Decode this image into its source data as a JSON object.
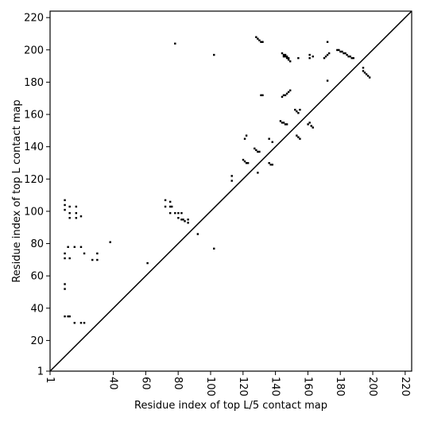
{
  "chart_data": {
    "type": "heatmap",
    "title": "",
    "xlabel": "Residue index of top L/5 contact map",
    "ylabel": "Residue index of top L contact map",
    "xlim": [
      1,
      224
    ],
    "ylim": [
      1,
      224
    ],
    "xticks": [
      1,
      40,
      60,
      80,
      100,
      120,
      140,
      160,
      180,
      200,
      220
    ],
    "yticks": [
      1,
      20,
      40,
      60,
      80,
      100,
      120,
      140,
      160,
      180,
      200,
      220
    ],
    "grid": false,
    "diagonal": true,
    "upper_contacts": [
      [
        128,
        208
      ],
      [
        129,
        207
      ],
      [
        130,
        206
      ],
      [
        131,
        205
      ],
      [
        132,
        205
      ],
      [
        144,
        198
      ],
      [
        145,
        197
      ],
      [
        146,
        196
      ],
      [
        147,
        195
      ],
      [
        148,
        194
      ],
      [
        149,
        193
      ],
      [
        145,
        196
      ],
      [
        146,
        197
      ],
      [
        147,
        196
      ],
      [
        148,
        195
      ],
      [
        154,
        195
      ],
      [
        161,
        197
      ],
      [
        161,
        195
      ],
      [
        163,
        196
      ],
      [
        170,
        195
      ],
      [
        171,
        196
      ],
      [
        172,
        197
      ],
      [
        173,
        198
      ],
      [
        172,
        205
      ],
      [
        172,
        181
      ],
      [
        178,
        200
      ],
      [
        179,
        200
      ],
      [
        180,
        199
      ],
      [
        181,
        199
      ],
      [
        182,
        198
      ],
      [
        183,
        198
      ],
      [
        184,
        197
      ],
      [
        185,
        196
      ],
      [
        186,
        196
      ],
      [
        187,
        195
      ],
      [
        188,
        195
      ],
      [
        194,
        189
      ],
      [
        194,
        187
      ],
      [
        195,
        186
      ],
      [
        196,
        185
      ],
      [
        197,
        184
      ],
      [
        198,
        183
      ],
      [
        102,
        197
      ],
      [
        78,
        204
      ],
      [
        131,
        172
      ],
      [
        132,
        172
      ],
      [
        144,
        171
      ],
      [
        145,
        172
      ],
      [
        146,
        172
      ],
      [
        147,
        173
      ],
      [
        148,
        174
      ],
      [
        149,
        175
      ],
      [
        152,
        163
      ],
      [
        153,
        162
      ],
      [
        154,
        161
      ],
      [
        155,
        163
      ],
      [
        143,
        156
      ],
      [
        144,
        155
      ],
      [
        145,
        155
      ],
      [
        146,
        154
      ],
      [
        147,
        154
      ],
      [
        160,
        154
      ],
      [
        161,
        155
      ],
      [
        162,
        153
      ],
      [
        163,
        152
      ],
      [
        153,
        147
      ],
      [
        154,
        146
      ],
      [
        155,
        145
      ],
      [
        121,
        145
      ],
      [
        122,
        147
      ],
      [
        136,
        145
      ],
      [
        138,
        143
      ],
      [
        127,
        139
      ],
      [
        128,
        138
      ],
      [
        129,
        137
      ],
      [
        130,
        137
      ],
      [
        120,
        132
      ],
      [
        121,
        131
      ],
      [
        122,
        130
      ],
      [
        123,
        130
      ],
      [
        136,
        130
      ],
      [
        137,
        129
      ],
      [
        138,
        129
      ],
      [
        129,
        124
      ],
      [
        113,
        122
      ],
      [
        113,
        119
      ]
    ],
    "lower_contacts": [
      [
        10,
        107
      ],
      [
        10,
        104
      ],
      [
        10,
        101
      ],
      [
        13,
        103
      ],
      [
        13,
        99
      ],
      [
        17,
        103
      ],
      [
        17,
        99
      ],
      [
        20,
        97
      ],
      [
        13,
        96
      ],
      [
        17,
        96
      ],
      [
        72,
        107
      ],
      [
        75,
        106
      ],
      [
        72,
        103
      ],
      [
        75,
        103
      ],
      [
        76,
        103
      ],
      [
        75,
        99
      ],
      [
        78,
        99
      ],
      [
        80,
        99
      ],
      [
        82,
        99
      ],
      [
        80,
        96
      ],
      [
        82,
        95
      ],
      [
        83,
        95
      ],
      [
        84,
        94
      ],
      [
        86,
        93
      ],
      [
        86,
        95
      ],
      [
        12,
        78
      ],
      [
        16,
        78
      ],
      [
        20,
        78
      ],
      [
        22,
        74
      ],
      [
        10,
        74
      ],
      [
        10,
        71
      ],
      [
        13,
        71
      ],
      [
        38,
        81
      ],
      [
        27,
        70
      ],
      [
        30,
        70
      ],
      [
        30,
        74
      ],
      [
        61,
        68
      ],
      [
        92,
        86
      ],
      [
        102,
        77
      ],
      [
        10,
        55
      ],
      [
        10,
        52
      ],
      [
        10,
        35
      ],
      [
        12,
        35
      ],
      [
        13,
        35
      ],
      [
        16,
        31
      ],
      [
        20,
        31
      ],
      [
        22,
        31
      ]
    ]
  }
}
